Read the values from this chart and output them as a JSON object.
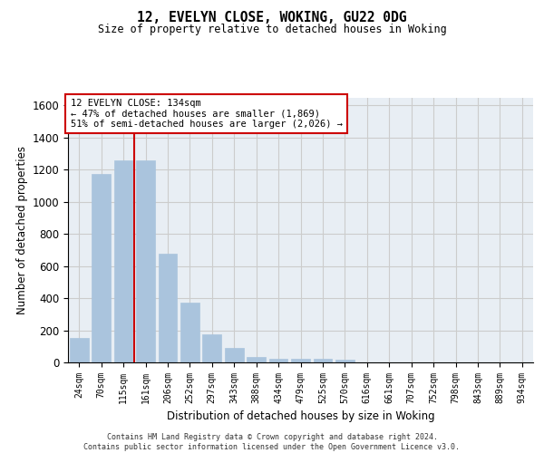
{
  "title1": "12, EVELYN CLOSE, WOKING, GU22 0DG",
  "title2": "Size of property relative to detached houses in Woking",
  "xlabel": "Distribution of detached houses by size in Woking",
  "ylabel": "Number of detached properties",
  "categories": [
    "24sqm",
    "70sqm",
    "115sqm",
    "161sqm",
    "206sqm",
    "252sqm",
    "297sqm",
    "343sqm",
    "388sqm",
    "434sqm",
    "479sqm",
    "525sqm",
    "570sqm",
    "616sqm",
    "661sqm",
    "707sqm",
    "752sqm",
    "798sqm",
    "843sqm",
    "889sqm",
    "934sqm"
  ],
  "values": [
    150,
    1175,
    1260,
    1260,
    675,
    370,
    175,
    90,
    35,
    25,
    20,
    20,
    15,
    0,
    0,
    0,
    0,
    0,
    0,
    0,
    0
  ],
  "bar_color": "#aac4dd",
  "bar_edge_color": "#aac4dd",
  "grid_color": "#cccccc",
  "annotation_box_color": "#cc0000",
  "vline_color": "#cc0000",
  "vline_x": 2.5,
  "annotation_text": "12 EVELYN CLOSE: 134sqm\n← 47% of detached houses are smaller (1,869)\n51% of semi-detached houses are larger (2,026) →",
  "ylim": [
    0,
    1650
  ],
  "yticks": [
    0,
    200,
    400,
    600,
    800,
    1000,
    1200,
    1400,
    1600
  ],
  "footer": "Contains HM Land Registry data © Crown copyright and database right 2024.\nContains public sector information licensed under the Open Government Licence v3.0.",
  "background_color": "#e8eef4"
}
